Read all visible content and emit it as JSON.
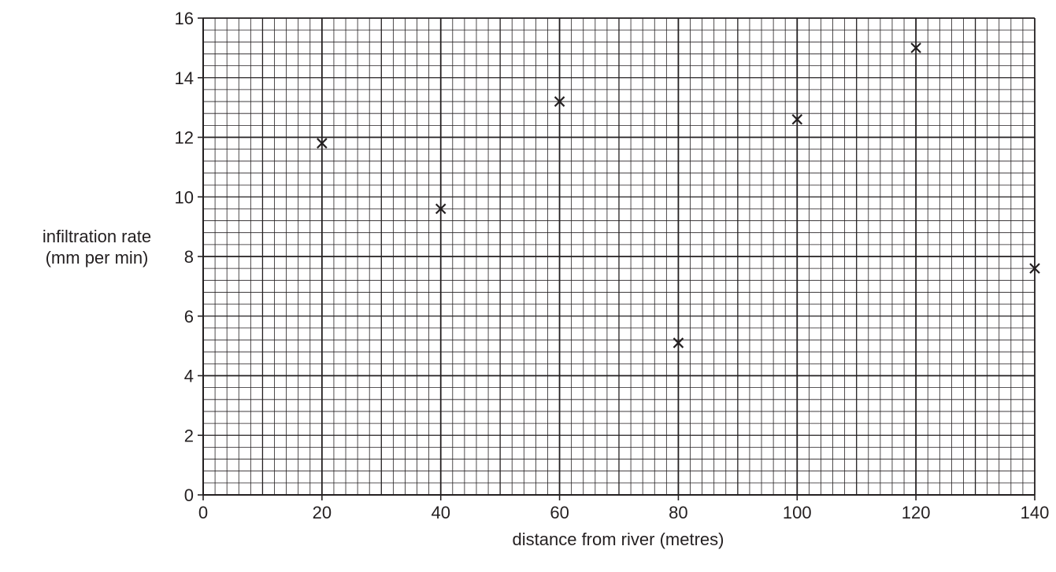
{
  "chart_data": {
    "type": "scatter",
    "title": "",
    "xlabel": "distance from river (metres)",
    "ylabel_lines": [
      "infiltration rate",
      "(mm per min)"
    ],
    "xlim": [
      0,
      140
    ],
    "ylim": [
      0,
      16
    ],
    "x_ticks": [
      0,
      20,
      40,
      60,
      80,
      100,
      120,
      140
    ],
    "y_ticks": [
      0,
      2,
      4,
      6,
      8,
      10,
      12,
      14,
      16
    ],
    "grid": {
      "shown": true,
      "x_major_step": 20,
      "y_major_step": 4,
      "x_minor_step": 2,
      "y_minor_step": 0.4,
      "x_medium_step": 10,
      "y_medium_step": 2
    },
    "marker": "x",
    "points": [
      {
        "x": 20,
        "y": 11.8
      },
      {
        "x": 40,
        "y": 9.6
      },
      {
        "x": 60,
        "y": 13.2
      },
      {
        "x": 80,
        "y": 5.1
      },
      {
        "x": 100,
        "y": 12.6
      },
      {
        "x": 120,
        "y": 15.0
      },
      {
        "x": 140,
        "y": 7.6
      }
    ],
    "colors": {
      "ink": "#231f20",
      "background": "#ffffff"
    }
  }
}
